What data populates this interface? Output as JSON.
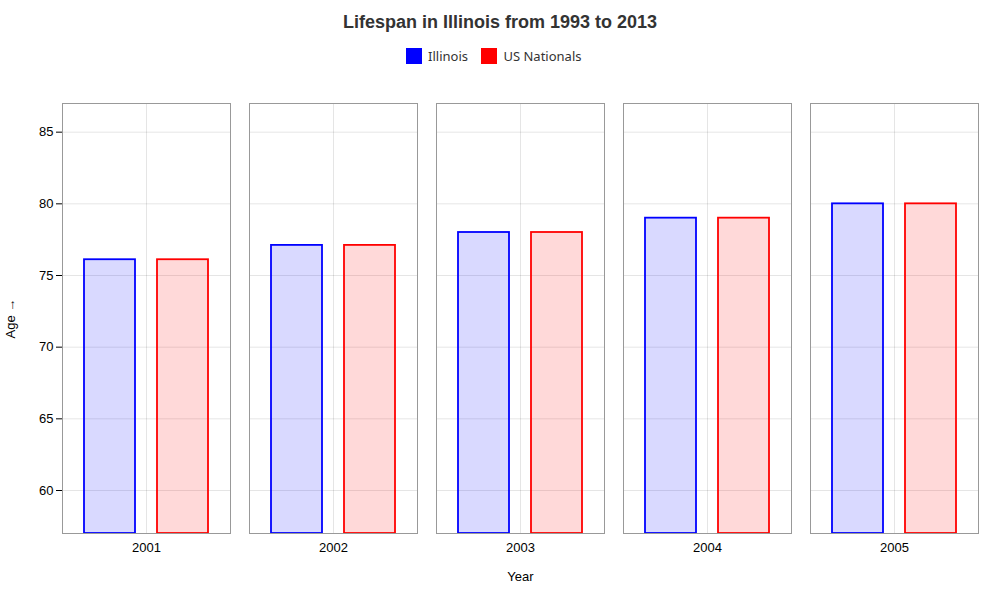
{
  "chart_data": {
    "type": "bar",
    "title": "Lifespan in Illinois from 1993 to 2013",
    "x_label": "Year",
    "y_label": "Age",
    "categories": [
      "2001",
      "2002",
      "2003",
      "2004",
      "2005"
    ],
    "series": [
      {
        "name": "Illinois",
        "color": "#0000ff",
        "values": [
          76.1,
          77.1,
          78.0,
          79.0,
          80.0
        ]
      },
      {
        "name": "US Nationals",
        "color": "#ff0000",
        "values": [
          76.1,
          77.1,
          78.0,
          79.0,
          80.0
        ]
      }
    ],
    "ylim": [
      57,
      87
    ],
    "yticks": [
      60,
      65,
      70,
      75,
      80,
      85
    ],
    "grid": true,
    "legend": "top"
  }
}
